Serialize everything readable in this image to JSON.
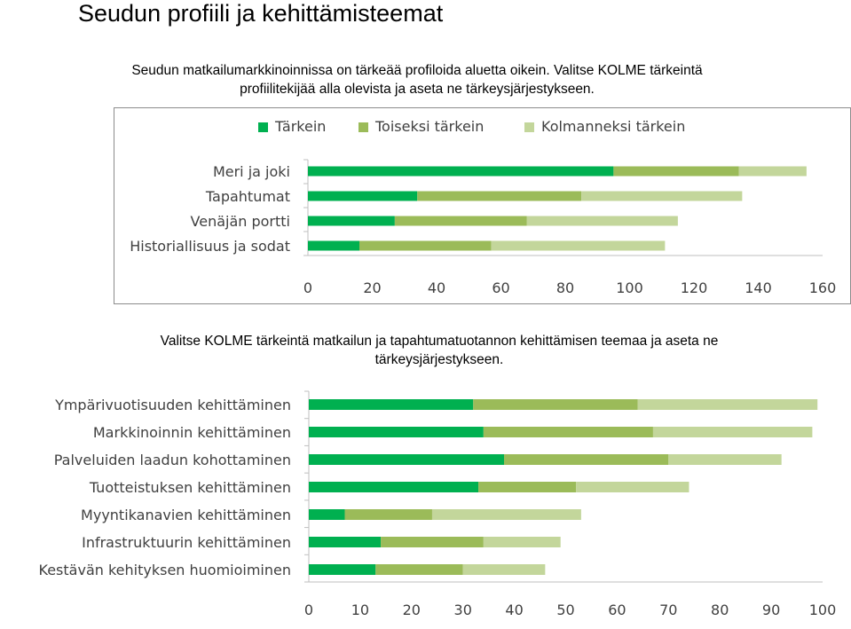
{
  "page": {
    "title": "Seudun profiili ja kehittämisteemat",
    "instruction1_line1": "Seudun matkailumarkkinoinnissa on tärkeää profiloida aluetta oikein. Valitse KOLME tärkeintä",
    "instruction1_line2": "profiilitekijää alla olevista ja aseta ne tärkeysjärjestykseen.",
    "instruction2_line1": "Valitse KOLME tärkeintä matkailun ja tapahtumatuotannon kehittämisen teemaa ja aseta ne",
    "instruction2_line2": "tärkeysjärjestykseen."
  },
  "colors": {
    "series1": "#00b050",
    "series2": "#9bbb59",
    "series3": "#c3d69b",
    "axis": "#bfbfbf",
    "text": "#404040"
  },
  "chart_data": [
    {
      "type": "bar",
      "orientation": "horizontal",
      "stacked": true,
      "title": "",
      "legend": "top",
      "categories": [
        "Meri ja joki",
        "Tapahtumat",
        "Venäjän portti",
        "Historiallisuus ja sodat"
      ],
      "series": [
        {
          "name": "Tärkein",
          "values": [
            95,
            34,
            27,
            16
          ]
        },
        {
          "name": "Toiseksi tärkein",
          "values": [
            39,
            51,
            41,
            41
          ]
        },
        {
          "name": "Kolmanneksi tärkein",
          "values": [
            21,
            50,
            47,
            54
          ]
        }
      ],
      "xlim": [
        0,
        160
      ],
      "xticks": [
        0,
        20,
        40,
        60,
        80,
        100,
        120,
        140,
        160
      ],
      "grid": false
    },
    {
      "type": "bar",
      "orientation": "horizontal",
      "stacked": true,
      "title": "",
      "legend": "none",
      "categories": [
        "Ympärivuotisuuden kehittäminen",
        "Markkinoinnin kehittäminen",
        "Palveluiden laadun kohottaminen",
        "Tuotteistuksen kehittäminen",
        "Myyntikanavien kehittäminen",
        "Infrastruktuurin kehittäminen",
        "Kestävän kehityksen huomioiminen"
      ],
      "series": [
        {
          "name": "Tärkein",
          "values": [
            32,
            34,
            38,
            33,
            7,
            14,
            13
          ]
        },
        {
          "name": "Toiseksi tärkein",
          "values": [
            32,
            33,
            32,
            19,
            17,
            20,
            17
          ]
        },
        {
          "name": "Kolmanneksi tärkein",
          "values": [
            35,
            31,
            22,
            22,
            29,
            15,
            16
          ]
        }
      ],
      "xlim": [
        0,
        100
      ],
      "xticks": [
        0,
        10,
        20,
        30,
        40,
        50,
        60,
        70,
        80,
        90,
        100
      ],
      "grid": false
    }
  ]
}
